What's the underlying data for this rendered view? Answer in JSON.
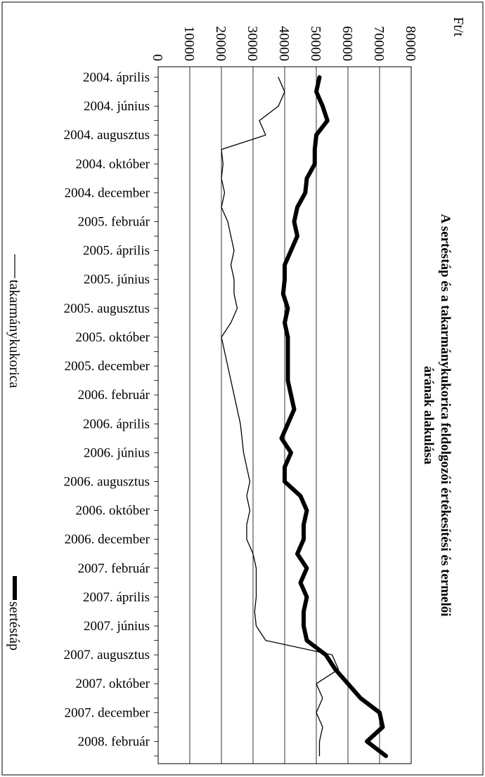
{
  "chart_data": {
    "type": "line",
    "orientation": "rotated-90-clockwise",
    "title": "A sertéstáp és a takarmánykukorica feldolgozói értékesítési és termelői árának alakulása",
    "title_lines": [
      "A sertéstáp és a takarmánykukorica feldolgozói értékesítési és termelői",
      "árának alakulása"
    ],
    "ylabel": "Ft/t",
    "ylim": [
      0,
      80000
    ],
    "yticks": [
      0,
      10000,
      20000,
      30000,
      40000,
      50000,
      60000,
      70000,
      80000
    ],
    "ytick_labels": [
      "0",
      "10000",
      "20000",
      "30000",
      "40000",
      "50000",
      "60000",
      "70000",
      "80000"
    ],
    "grid": true,
    "legend_position": "bottom",
    "x_start": "2004-04",
    "x_end": "2008-03",
    "x_tick_labels": [
      "2004. április",
      "2004. június",
      "2004. augusztus",
      "2004. október",
      "2004. december",
      "2005. február",
      "2005. április",
      "2005. június",
      "2005. augusztus",
      "2005. október",
      "2005. december",
      "2006. február",
      "2006. április",
      "2006. június",
      "2006. augusztus",
      "2006. október",
      "2006. december",
      "2007. február",
      "2007. április",
      "2007. június",
      "2007. augusztus",
      "2007. október",
      "2007. december",
      "2008. február"
    ],
    "series": [
      {
        "name": "takarmánykukorica",
        "color": "#000000",
        "line_weight": "thin",
        "points": [
          [
            "2004-04",
            38000
          ],
          [
            "2004-05",
            40000
          ],
          [
            "2004-06",
            38000
          ],
          [
            "2004-07",
            32000
          ],
          [
            "2004-08",
            34000
          ],
          [
            "2004-09",
            20000
          ],
          [
            "2004-10",
            20500
          ],
          [
            "2004-11",
            20000
          ],
          [
            "2004-12",
            21000
          ],
          [
            "2005-01",
            20000
          ],
          [
            "2005-02",
            22000
          ],
          [
            "2005-03",
            23000
          ],
          [
            "2005-04",
            24000
          ],
          [
            "2005-05",
            23000
          ],
          [
            "2005-06",
            24000
          ],
          [
            "2005-07",
            24000
          ],
          [
            "2005-08",
            25000
          ],
          [
            "2005-09",
            23000
          ],
          [
            "2005-10",
            20000
          ],
          [
            "2005-11",
            21000
          ],
          [
            "2005-12",
            22000
          ],
          [
            "2006-01",
            23000
          ],
          [
            "2006-02",
            24000
          ],
          [
            "2006-03",
            25000
          ],
          [
            "2006-04",
            26000
          ],
          [
            "2006-05",
            26500
          ],
          [
            "2006-06",
            27000
          ],
          [
            "2006-07",
            28000
          ],
          [
            "2006-08",
            29000
          ],
          [
            "2006-09",
            28000
          ],
          [
            "2006-10",
            29000
          ],
          [
            "2006-11",
            28000
          ],
          [
            "2006-12",
            28000
          ],
          [
            "2007-01",
            30000
          ],
          [
            "2007-02",
            31000
          ],
          [
            "2007-03",
            31000
          ],
          [
            "2007-04",
            31000
          ],
          [
            "2007-05",
            30500
          ],
          [
            "2007-06",
            31000
          ],
          [
            "2007-07",
            34000
          ],
          [
            "2007-08",
            55000
          ],
          [
            "2007-09",
            57000
          ],
          [
            "2007-10",
            50000
          ],
          [
            "2007-11",
            52000
          ],
          [
            "2007-12",
            50000
          ],
          [
            "2008-01",
            52000
          ],
          [
            "2008-02",
            51000
          ],
          [
            "2008-03",
            51000
          ]
        ]
      },
      {
        "name": "sertéstáp",
        "color": "#000000",
        "line_weight": "thick",
        "points": [
          [
            "2004-04",
            51000
          ],
          [
            "2004-05",
            50000
          ],
          [
            "2004-06",
            52000
          ],
          [
            "2004-07",
            53500
          ],
          [
            "2004-08",
            50000
          ],
          [
            "2004-09",
            49500
          ],
          [
            "2004-10",
            49500
          ],
          [
            "2004-11",
            47000
          ],
          [
            "2004-12",
            46500
          ],
          [
            "2005-01",
            44000
          ],
          [
            "2005-02",
            43000
          ],
          [
            "2005-03",
            44000
          ],
          [
            "2005-04",
            42000
          ],
          [
            "2005-05",
            40000
          ],
          [
            "2005-06",
            40000
          ],
          [
            "2005-07",
            39500
          ],
          [
            "2005-08",
            41000
          ],
          [
            "2005-09",
            40000
          ],
          [
            "2005-10",
            41000
          ],
          [
            "2005-11",
            41000
          ],
          [
            "2005-12",
            41000
          ],
          [
            "2006-01",
            41000
          ],
          [
            "2006-02",
            42000
          ],
          [
            "2006-03",
            43000
          ],
          [
            "2006-04",
            41000
          ],
          [
            "2006-05",
            39000
          ],
          [
            "2006-06",
            42000
          ],
          [
            "2006-07",
            40000
          ],
          [
            "2006-08",
            40000
          ],
          [
            "2006-09",
            45000
          ],
          [
            "2006-10",
            47000
          ],
          [
            "2006-11",
            46000
          ],
          [
            "2006-12",
            46000
          ],
          [
            "2007-01",
            44000
          ],
          [
            "2007-02",
            47000
          ],
          [
            "2007-03",
            45000
          ],
          [
            "2007-04",
            47000
          ],
          [
            "2007-05",
            46000
          ],
          [
            "2007-06",
            46000
          ],
          [
            "2007-07",
            47000
          ],
          [
            "2007-08",
            53000
          ],
          [
            "2007-09",
            56000
          ],
          [
            "2007-10",
            60000
          ],
          [
            "2007-11",
            64000
          ],
          [
            "2007-12",
            70000
          ],
          [
            "2008-01",
            71000
          ],
          [
            "2008-02",
            66000
          ],
          [
            "2008-03",
            72000
          ]
        ]
      }
    ]
  }
}
